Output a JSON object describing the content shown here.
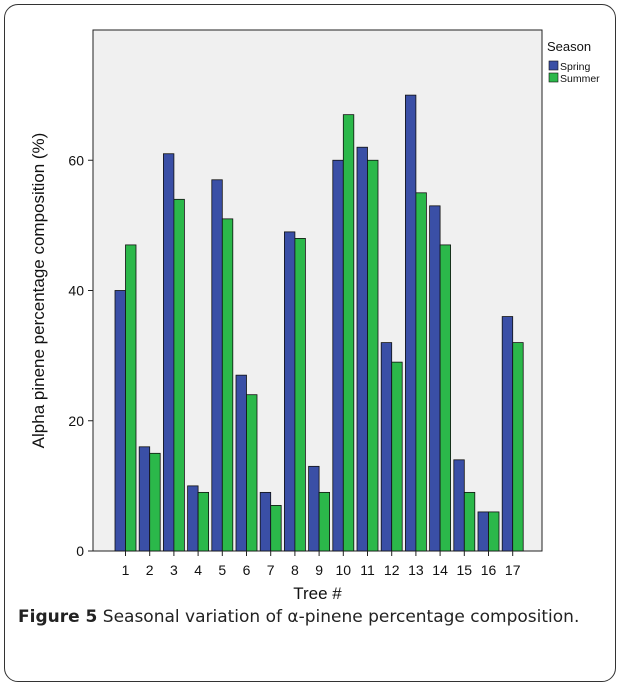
{
  "chart_data": {
    "type": "bar",
    "categories": [
      "1",
      "2",
      "3",
      "4",
      "5",
      "6",
      "7",
      "8",
      "9",
      "10",
      "11",
      "12",
      "13",
      "14",
      "15",
      "16",
      "17"
    ],
    "series": [
      {
        "name": "Spring",
        "color": "#3a4fa6",
        "values": [
          40,
          16,
          61,
          10,
          57,
          27,
          9,
          49,
          13,
          60,
          62,
          32,
          70,
          53,
          14,
          6,
          36
        ]
      },
      {
        "name": "Summer",
        "color": "#2bb84a",
        "values": [
          47,
          15,
          54,
          9,
          51,
          24,
          7,
          48,
          9,
          67,
          60,
          29,
          55,
          47,
          9,
          6,
          32
        ]
      }
    ],
    "xlabel": "Tree #",
    "ylabel": "Alpha pinene percentage composition (%)",
    "ylim": [
      0,
      80
    ],
    "yticks": [
      0,
      20,
      40,
      60
    ],
    "grid": false,
    "legend_title": "Season",
    "legend_position": "top-right",
    "plot_background": "#f0f0f0"
  },
  "caption": {
    "label": "Figure 5",
    "text": "Seasonal variation of α-pinene percentage composition."
  }
}
